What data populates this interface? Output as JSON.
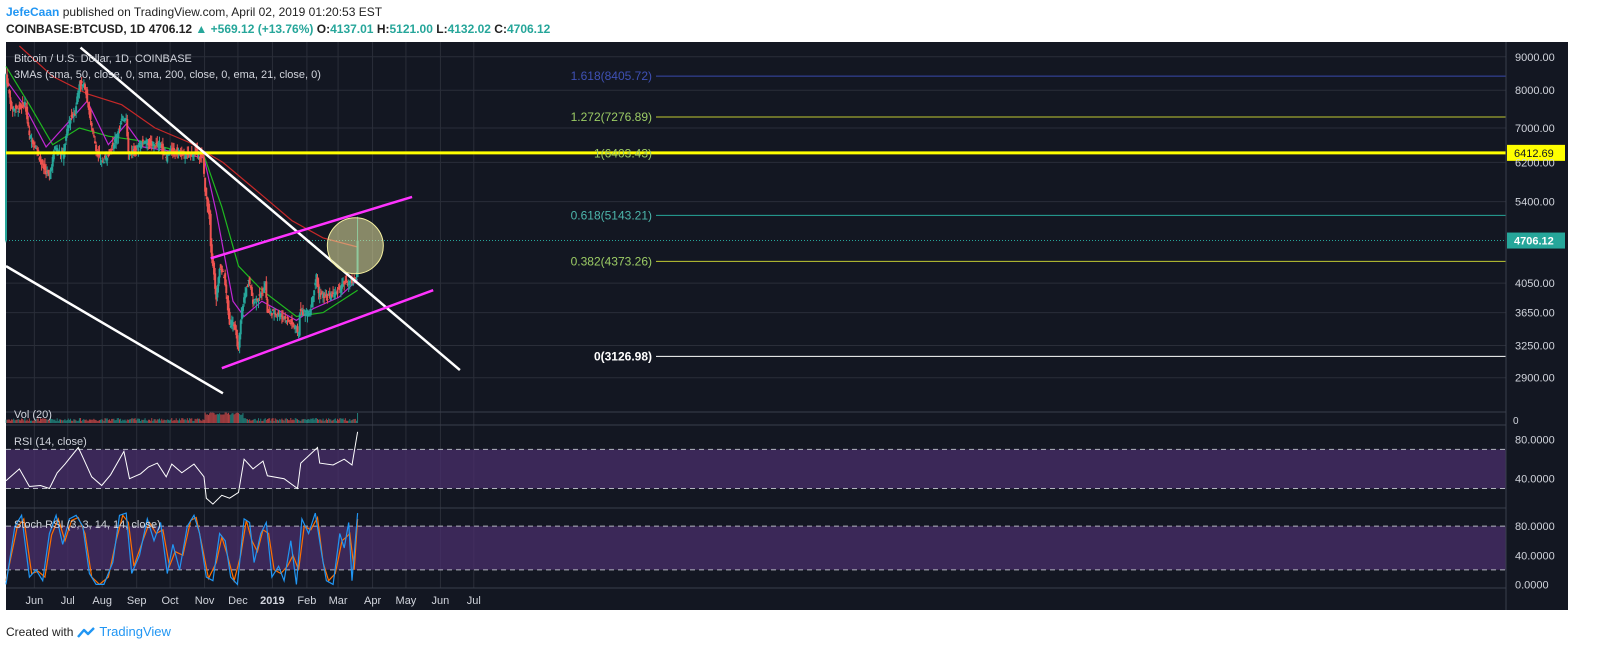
{
  "header": {
    "author": "JefeCaan",
    "published_text": "published on TradingView.com, April 02, 2019 01:20:53 EST",
    "symbol": "COINBASE:BTCUSD, 1D",
    "price": "4706.12",
    "change": "+569.12 (+13.76%)",
    "o_label": "O:",
    "o_value": "4137.01",
    "h_label": "H:",
    "h_value": "5121.00",
    "l_label": "L:",
    "l_value": "4132.02",
    "c_label": "C:",
    "c_value": "4706.12"
  },
  "footer": {
    "created_with": "Created with",
    "brand": "TradingView"
  },
  "colors": {
    "background": "#131722",
    "grid": "#2a2e39",
    "axis_text": "#d1d4dc",
    "up_candle": "#26a69a",
    "down_candle": "#ef5350",
    "sma50": "#1fb91f",
    "sma200": "#c62828",
    "ema21": "#c026d3",
    "channel": "#ff33ff",
    "trendline": "#ffffff",
    "horizontal_level": "#ffff00",
    "oscillator_band": "#4a2f6b",
    "rsi_line": "#ffffff",
    "stoch_k": "#2196f3",
    "stoch_d": "#ff6f00"
  },
  "chart_data": {
    "type": "candlestick",
    "title": "Bitcoin / U.S. Dollar, 1D, COINBASE",
    "indicator_label": "3MAs (sma, 50, close, 0, sma, 200, close, 0, ema, 21, close, 0)",
    "x_ticks": [
      "Jun",
      "Jul",
      "Aug",
      "Sep",
      "Oct",
      "Nov",
      "Dec",
      "2019",
      "Feb",
      "Mar",
      "Apr",
      "May",
      "Jun",
      "Jul"
    ],
    "y_ticks": [
      "9000.00",
      "8000.00",
      "7000.00",
      "6200.00",
      "5400.00",
      "4050.00",
      "3650.00",
      "3250.00",
      "2900.00"
    ],
    "y_range": [
      2700,
      9350
    ],
    "y_scale": "log",
    "last_price_label": "4706.12",
    "level_price_label": "6412.69",
    "fib_levels": [
      {
        "label": "1.618(8405.72)",
        "value": 8405.72
      },
      {
        "label": "1.272(7276.89)",
        "value": 7276.89
      },
      {
        "label": "1(6403.43)",
        "value": 6403.43
      },
      {
        "label": "0.618(5143.21)",
        "value": 5143.21
      },
      {
        "label": "0.382(4373.26)",
        "value": 4373.26
      },
      {
        "label": "0(3126.98)",
        "value": 3126.98
      }
    ],
    "horizontal_line": 6412.69,
    "price_path": [
      [
        "2018-05-20",
        8450
      ],
      [
        "2018-05-25",
        7500
      ],
      [
        "2018-06-01",
        7500
      ],
      [
        "2018-06-06",
        7650
      ],
      [
        "2018-06-10",
        6800
      ],
      [
        "2018-06-15",
        6600
      ],
      [
        "2018-06-22",
        6100
      ],
      [
        "2018-06-28",
        5900
      ],
      [
        "2018-07-03",
        6550
      ],
      [
        "2018-07-10",
        6350
      ],
      [
        "2018-07-16",
        7200
      ],
      [
        "2018-07-21",
        7400
      ],
      [
        "2018-07-25",
        8200
      ],
      [
        "2018-07-30",
        8100
      ],
      [
        "2018-08-05",
        7000
      ],
      [
        "2018-08-10",
        6400
      ],
      [
        "2018-08-14",
        6200
      ],
      [
        "2018-08-19",
        6350
      ],
      [
        "2018-08-26",
        6700
      ],
      [
        "2018-09-01",
        7200
      ],
      [
        "2018-09-05",
        7300
      ],
      [
        "2018-09-07",
        6400
      ],
      [
        "2018-09-14",
        6500
      ],
      [
        "2018-09-21",
        6700
      ],
      [
        "2018-09-28",
        6600
      ],
      [
        "2018-10-06",
        6600
      ],
      [
        "2018-10-11",
        6300
      ],
      [
        "2018-10-14",
        6450
      ],
      [
        "2018-10-20",
        6450
      ],
      [
        "2018-10-28",
        6350
      ],
      [
        "2018-11-06",
        6420
      ],
      [
        "2018-11-13",
        6300
      ],
      [
        "2018-11-15",
        5600
      ],
      [
        "2018-11-19",
        5100
      ],
      [
        "2018-11-20",
        4650
      ],
      [
        "2018-11-24",
        4000
      ],
      [
        "2018-11-25",
        3800
      ],
      [
        "2018-11-28",
        4300
      ],
      [
        "2018-12-02",
        4150
      ],
      [
        "2018-12-07",
        3500
      ],
      [
        "2018-12-10",
        3550
      ],
      [
        "2018-12-15",
        3200
      ],
      [
        "2018-12-18",
        3700
      ],
      [
        "2018-12-24",
        4100
      ],
      [
        "2018-12-28",
        3800
      ],
      [
        "2019-01-03",
        3850
      ],
      [
        "2019-01-08",
        4050
      ],
      [
        "2019-01-10",
        3650
      ],
      [
        "2019-01-18",
        3650
      ],
      [
        "2019-01-26",
        3580
      ],
      [
        "2019-02-02",
        3500
      ],
      [
        "2019-02-07",
        3400
      ],
      [
        "2019-02-08",
        3650
      ],
      [
        "2019-02-17",
        3650
      ],
      [
        "2019-02-23",
        4150
      ],
      [
        "2019-02-25",
        3900
      ],
      [
        "2019-03-05",
        3850
      ],
      [
        "2019-03-12",
        3900
      ],
      [
        "2019-03-20",
        4050
      ],
      [
        "2019-03-27",
        4050
      ],
      [
        "2019-03-31",
        4137
      ],
      [
        "2019-04-01",
        4706
      ]
    ],
    "moving_averages": [
      {
        "name": "sma 50",
        "points": [
          [
            "2018-05-20",
            8700
          ],
          [
            "2018-06-10",
            7600
          ],
          [
            "2018-07-01",
            6600
          ],
          [
            "2018-07-25",
            7000
          ],
          [
            "2018-08-20",
            6800
          ],
          [
            "2018-09-15",
            6700
          ],
          [
            "2018-10-15",
            6500
          ],
          [
            "2018-11-14",
            6350
          ],
          [
            "2018-11-30",
            5300
          ],
          [
            "2018-12-15",
            4300
          ],
          [
            "2019-01-05",
            3950
          ],
          [
            "2019-02-05",
            3600
          ],
          [
            "2019-03-01",
            3650
          ],
          [
            "2019-04-01",
            3950
          ]
        ]
      },
      {
        "name": "sma 200",
        "points": [
          [
            "2018-06-01",
            9350
          ],
          [
            "2018-07-01",
            8400
          ],
          [
            "2018-08-01",
            7900
          ],
          [
            "2018-09-01",
            7600
          ],
          [
            "2018-10-01",
            7000
          ],
          [
            "2018-11-01",
            6650
          ],
          [
            "2018-12-01",
            6200
          ],
          [
            "2019-01-01",
            5600
          ],
          [
            "2019-02-01",
            5050
          ],
          [
            "2019-03-01",
            4750
          ],
          [
            "2019-04-01",
            4600
          ]
        ]
      },
      {
        "name": "ema 21",
        "points": [
          [
            "2018-05-20",
            8300
          ],
          [
            "2018-06-05",
            7600
          ],
          [
            "2018-06-25",
            6550
          ],
          [
            "2018-07-20",
            7300
          ],
          [
            "2018-08-01",
            7700
          ],
          [
            "2018-08-20",
            6600
          ],
          [
            "2018-09-05",
            7100
          ],
          [
            "2018-09-20",
            6550
          ],
          [
            "2018-10-15",
            6450
          ],
          [
            "2018-11-14",
            6300
          ],
          [
            "2018-11-25",
            5200
          ],
          [
            "2018-12-10",
            3800
          ],
          [
            "2018-12-20",
            3600
          ],
          [
            "2019-01-05",
            3800
          ],
          [
            "2019-02-05",
            3550
          ],
          [
            "2019-02-20",
            3700
          ],
          [
            "2019-03-15",
            3850
          ],
          [
            "2019-04-01",
            4100
          ]
        ]
      }
    ],
    "trendlines": [
      {
        "name": "descending resistance",
        "from": [
          "2018-07-26",
          9300
        ],
        "to": [
          "2019-07-02",
          2980
        ]
      },
      {
        "name": "lower descending line",
        "from": [
          "2018-05-20",
          4300
        ],
        "to": [
          "2018-12-01",
          2745
        ]
      }
    ],
    "channel": {
      "upper": {
        "from": [
          "2018-11-20",
          4420
        ],
        "to": [
          "2019-05-20",
          5490
        ]
      },
      "lower": {
        "from": [
          "2018-11-30",
          3000
        ],
        "to": [
          "2019-06-08",
          3950
        ]
      }
    },
    "highlight_circle_center": [
      "2019-03-30",
      4620
    ],
    "volume": {
      "label": "Vol (20)",
      "axis_tick": "0"
    },
    "rsi": {
      "label": "RSI (14, close)",
      "y_ticks": [
        "80.0000",
        "40.0000"
      ],
      "upper_band": 70,
      "lower_band": 30,
      "y_range": [
        10,
        95
      ],
      "points": [
        [
          "2018-05-20",
          38
        ],
        [
          "2018-06-01",
          50
        ],
        [
          "2018-06-10",
          32
        ],
        [
          "2018-06-20",
          33
        ],
        [
          "2018-06-28",
          30
        ],
        [
          "2018-07-05",
          46
        ],
        [
          "2018-07-12",
          55
        ],
        [
          "2018-07-24",
          72
        ],
        [
          "2018-07-28",
          62
        ],
        [
          "2018-08-05",
          42
        ],
        [
          "2018-08-14",
          33
        ],
        [
          "2018-08-22",
          44
        ],
        [
          "2018-09-03",
          68
        ],
        [
          "2018-09-08",
          40
        ],
        [
          "2018-09-18",
          45
        ],
        [
          "2018-09-25",
          52
        ],
        [
          "2018-10-03",
          56
        ],
        [
          "2018-10-11",
          42
        ],
        [
          "2018-10-16",
          55
        ],
        [
          "2018-10-25",
          46
        ],
        [
          "2018-11-05",
          55
        ],
        [
          "2018-11-14",
          42
        ],
        [
          "2018-11-16",
          20
        ],
        [
          "2018-11-22",
          14
        ],
        [
          "2018-11-30",
          23
        ],
        [
          "2018-12-07",
          20
        ],
        [
          "2018-12-15",
          26
        ],
        [
          "2018-12-20",
          60
        ],
        [
          "2018-12-28",
          50
        ],
        [
          "2019-01-06",
          58
        ],
        [
          "2019-01-10",
          43
        ],
        [
          "2019-01-25",
          40
        ],
        [
          "2019-02-06",
          30
        ],
        [
          "2019-02-09",
          56
        ],
        [
          "2019-02-24",
          72
        ],
        [
          "2019-02-26",
          56
        ],
        [
          "2019-03-10",
          54
        ],
        [
          "2019-03-20",
          60
        ],
        [
          "2019-03-27",
          54
        ],
        [
          "2019-04-01",
          88
        ]
      ]
    },
    "stoch_rsi": {
      "label": "Stoch RSI (3, 3, 14, 14, close)",
      "y_ticks": [
        "80.0000",
        "40.0000",
        "0.0000"
      ],
      "upper_band": 80,
      "lower_band": 20,
      "y_range": [
        -5,
        105
      ],
      "k": [
        [
          "2018-05-20",
          0
        ],
        [
          "2018-05-28",
          80
        ],
        [
          "2018-06-03",
          95
        ],
        [
          "2018-06-10",
          10
        ],
        [
          "2018-06-16",
          20
        ],
        [
          "2018-06-22",
          5
        ],
        [
          "2018-06-28",
          70
        ],
        [
          "2018-07-04",
          95
        ],
        [
          "2018-07-10",
          55
        ],
        [
          "2018-07-16",
          90
        ],
        [
          "2018-07-22",
          95
        ],
        [
          "2018-07-28",
          80
        ],
        [
          "2018-08-03",
          15
        ],
        [
          "2018-08-09",
          0
        ],
        [
          "2018-08-16",
          0
        ],
        [
          "2018-08-24",
          30
        ],
        [
          "2018-08-30",
          95
        ],
        [
          "2018-09-05",
          98
        ],
        [
          "2018-09-10",
          15
        ],
        [
          "2018-09-17",
          40
        ],
        [
          "2018-09-24",
          90
        ],
        [
          "2018-09-30",
          60
        ],
        [
          "2018-10-06",
          85
        ],
        [
          "2018-10-12",
          15
        ],
        [
          "2018-10-17",
          55
        ],
        [
          "2018-10-23",
          20
        ],
        [
          "2018-10-30",
          80
        ],
        [
          "2018-11-05",
          95
        ],
        [
          "2018-11-10",
          70
        ],
        [
          "2018-11-16",
          10
        ],
        [
          "2018-11-22",
          5
        ],
        [
          "2018-11-28",
          70
        ],
        [
          "2018-12-03",
          60
        ],
        [
          "2018-12-08",
          10
        ],
        [
          "2018-12-14",
          0
        ],
        [
          "2018-12-20",
          90
        ],
        [
          "2018-12-25",
          85
        ],
        [
          "2018-12-29",
          30
        ],
        [
          "2019-01-04",
          70
        ],
        [
          "2019-01-09",
          85
        ],
        [
          "2019-01-14",
          10
        ],
        [
          "2019-01-20",
          25
        ],
        [
          "2019-01-25",
          5
        ],
        [
          "2019-01-31",
          60
        ],
        [
          "2019-02-05",
          0
        ],
        [
          "2019-02-10",
          90
        ],
        [
          "2019-02-16",
          70
        ],
        [
          "2019-02-22",
          98
        ],
        [
          "2019-02-28",
          40
        ],
        [
          "2019-03-04",
          5
        ],
        [
          "2019-03-10",
          0
        ],
        [
          "2019-03-16",
          70
        ],
        [
          "2019-03-20",
          50
        ],
        [
          "2019-03-24",
          85
        ],
        [
          "2019-03-27",
          5
        ],
        [
          "2019-04-01",
          98
        ]
      ],
      "d": [
        [
          "2018-05-20",
          5
        ],
        [
          "2018-05-30",
          78
        ],
        [
          "2018-06-05",
          90
        ],
        [
          "2018-06-12",
          15
        ],
        [
          "2018-06-18",
          18
        ],
        [
          "2018-06-24",
          10
        ],
        [
          "2018-06-30",
          68
        ],
        [
          "2018-07-06",
          90
        ],
        [
          "2018-07-12",
          60
        ],
        [
          "2018-07-18",
          88
        ],
        [
          "2018-07-24",
          92
        ],
        [
          "2018-07-30",
          70
        ],
        [
          "2018-08-05",
          10
        ],
        [
          "2018-08-12",
          0
        ],
        [
          "2018-08-20",
          10
        ],
        [
          "2018-08-27",
          60
        ],
        [
          "2018-09-02",
          95
        ],
        [
          "2018-09-07",
          85
        ],
        [
          "2018-09-12",
          25
        ],
        [
          "2018-09-20",
          60
        ],
        [
          "2018-09-26",
          85
        ],
        [
          "2018-10-02",
          70
        ],
        [
          "2018-10-08",
          75
        ],
        [
          "2018-10-14",
          25
        ],
        [
          "2018-10-19",
          45
        ],
        [
          "2018-10-26",
          40
        ],
        [
          "2018-11-02",
          88
        ],
        [
          "2018-11-07",
          92
        ],
        [
          "2018-11-12",
          55
        ],
        [
          "2018-11-18",
          8
        ],
        [
          "2018-11-25",
          30
        ],
        [
          "2018-11-30",
          65
        ],
        [
          "2018-12-05",
          40
        ],
        [
          "2018-12-11",
          5
        ],
        [
          "2018-12-17",
          40
        ],
        [
          "2018-12-22",
          88
        ],
        [
          "2018-12-27",
          60
        ],
        [
          "2019-01-01",
          45
        ],
        [
          "2019-01-06",
          75
        ],
        [
          "2019-01-11",
          70
        ],
        [
          "2019-01-16",
          20
        ],
        [
          "2019-01-22",
          15
        ],
        [
          "2019-01-28",
          25
        ],
        [
          "2019-02-02",
          40
        ],
        [
          "2019-02-07",
          20
        ],
        [
          "2019-02-12",
          80
        ],
        [
          "2019-02-18",
          75
        ],
        [
          "2019-02-24",
          92
        ],
        [
          "2019-03-01",
          30
        ],
        [
          "2019-03-06",
          5
        ],
        [
          "2019-03-12",
          15
        ],
        [
          "2019-03-18",
          60
        ],
        [
          "2019-03-22",
          65
        ],
        [
          "2019-03-25",
          70
        ],
        [
          "2019-03-29",
          20
        ],
        [
          "2019-04-01",
          90
        ]
      ]
    }
  }
}
